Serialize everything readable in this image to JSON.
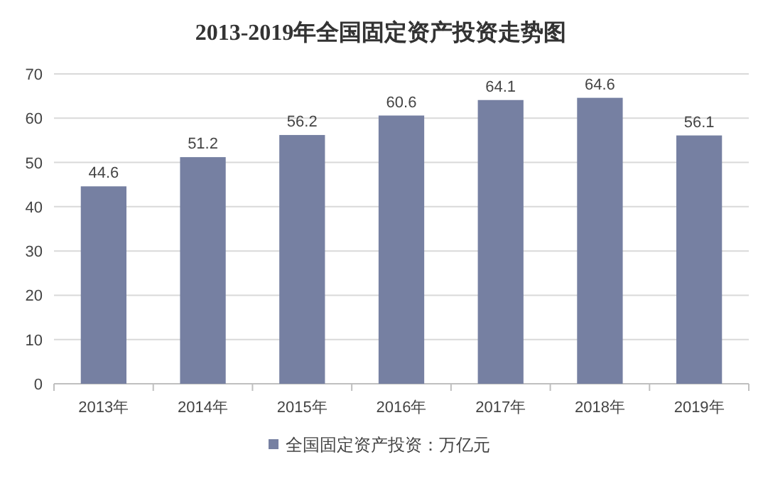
{
  "chart_data": {
    "type": "bar",
    "title": "2013-2019年全国固定资产投资走势图",
    "categories": [
      "2013年",
      "2014年",
      "2015年",
      "2016年",
      "2017年",
      "2018年",
      "2019年"
    ],
    "series": [
      {
        "name": "全国固定资产投资：万亿元",
        "color": "#7680a2",
        "values": [
          44.6,
          51.2,
          56.2,
          60.6,
          64.1,
          64.6,
          56.1
        ]
      }
    ],
    "ylim": [
      0,
      70
    ],
    "yticks": [
      0,
      10,
      20,
      30,
      40,
      50,
      60,
      70
    ],
    "grid": "y",
    "legend": "bottom",
    "data_labels": true
  }
}
